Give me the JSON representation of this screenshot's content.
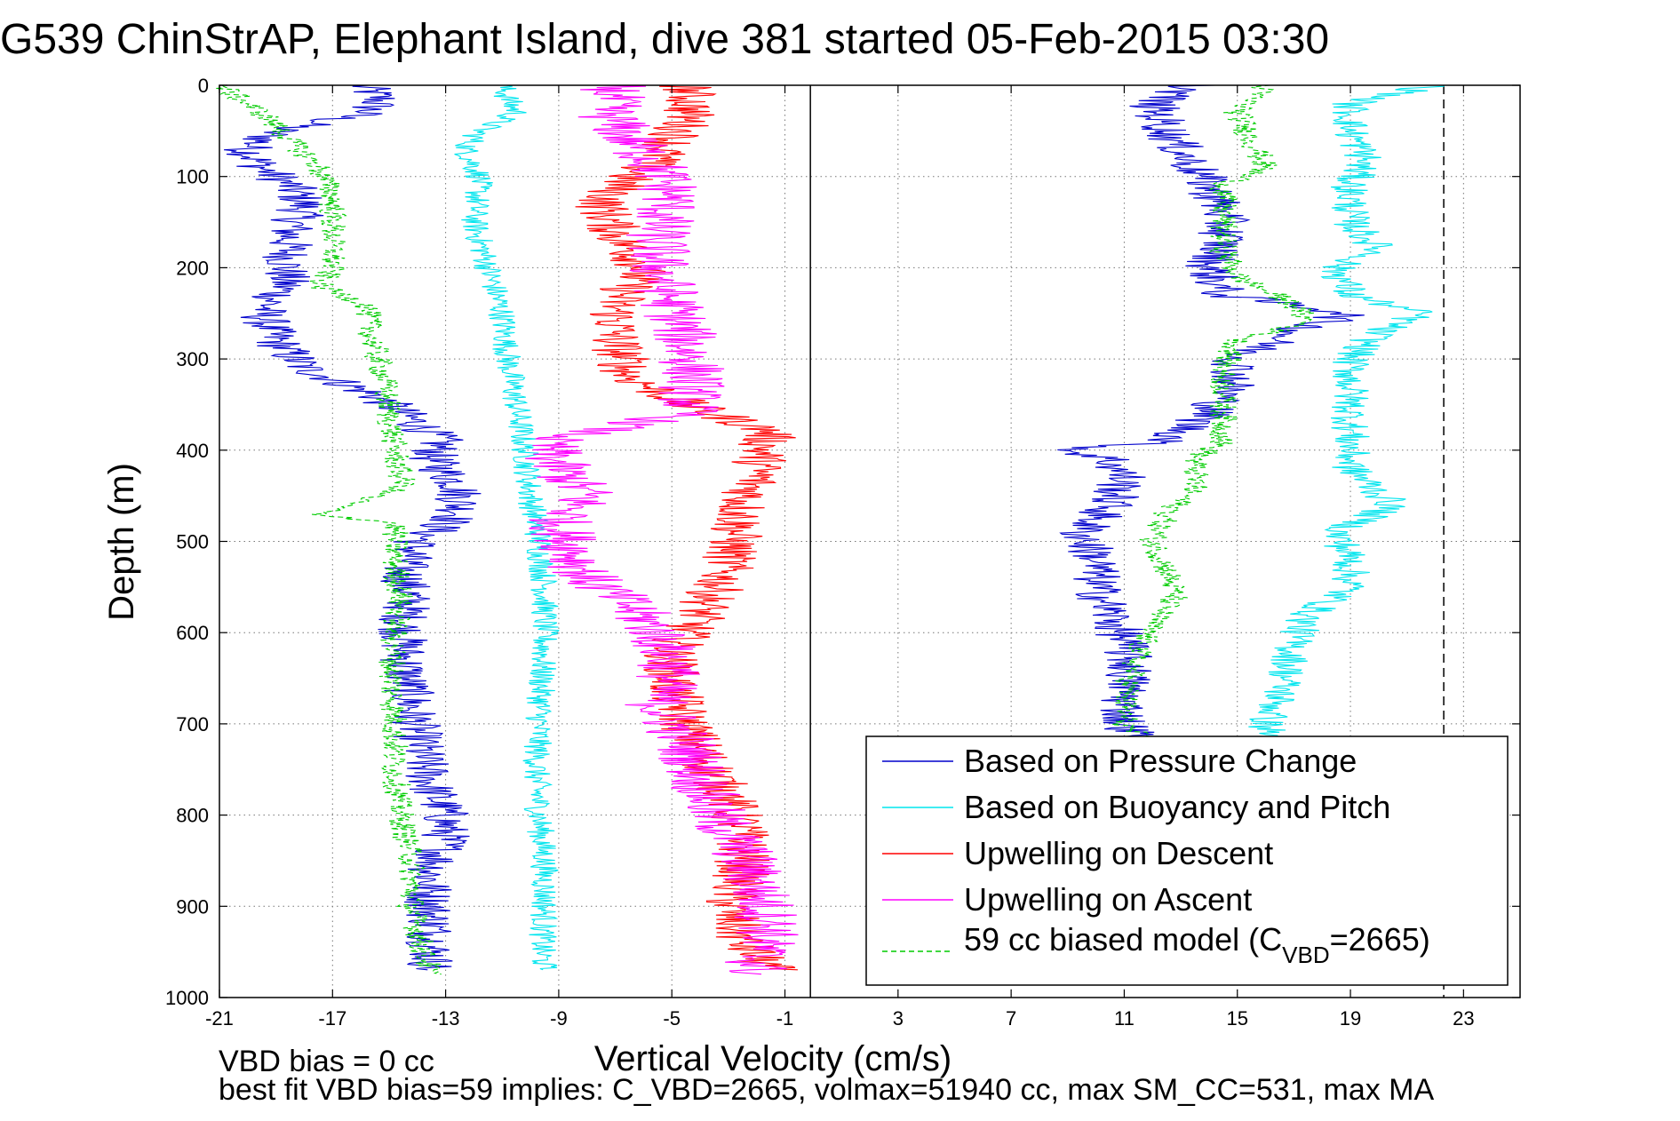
{
  "title": "G539 ChinStrAP, Elephant Island, dive 381 started 05-Feb-2015 03:30",
  "footnote": {
    "line1": "VBD bias = 0 cc",
    "line2": "best fit VBD bias=59 implies: C_VBD=2665, volmax=51940 cc, max SM_CC=531, max MA"
  },
  "legend": {
    "items": [
      {
        "label": "Based on Pressure Change",
        "color": "#0000cc",
        "dash": "solid"
      },
      {
        "label": "Based on Buoyancy and Pitch",
        "color": "#00e5ee",
        "dash": "solid"
      },
      {
        "label": "Upwelling on Descent",
        "color": "#ff0000",
        "dash": "solid"
      },
      {
        "label": "Upwelling on Ascent",
        "color": "#ff00ff",
        "dash": "solid"
      }
    ],
    "model": {
      "pre": "59 cc biased model (C",
      "sub": "VBD",
      "post": "=2665)",
      "color": "#00cc00",
      "dash": "dashed"
    }
  },
  "chart_data": {
    "type": "line",
    "title": "G539 ChinStrAP, Elephant Island, dive 381 started 05-Feb-2015 03:30",
    "xlabel": "Vertical Velocity (cm/s)",
    "ylabel": "Depth (m)",
    "xlim": [
      -21,
      25
    ],
    "ylim": [
      0,
      1000
    ],
    "y_reversed": true,
    "x_ticks": [
      "-21",
      "-17",
      "-13",
      "-9",
      "-5",
      "-1",
      "3",
      "7",
      "11",
      "15",
      "19",
      "23"
    ],
    "y_ticks": [
      "0",
      "100",
      "200",
      "300",
      "400",
      "500",
      "600",
      "700",
      "800",
      "900",
      "1000"
    ],
    "grid": true,
    "legend_position": "bottom-right",
    "reference_lines": [
      {
        "x": -0.1,
        "style": "solid",
        "color": "#000000"
      },
      {
        "x": 22.3,
        "style": "dashed",
        "color": "#000000"
      }
    ],
    "series": [
      {
        "name": "Based on Pressure Change",
        "color": "#0000cc",
        "dash": "solid",
        "noise": 0.9,
        "y": [
          0,
          15,
          30,
          50,
          70,
          90,
          110,
          130,
          160,
          190,
          220,
          250,
          280,
          310,
          340,
          370,
          390,
          410,
          440,
          470,
          500,
          530,
          560,
          590,
          620,
          650,
          680,
          710,
          740,
          770,
          800,
          830,
          860,
          890,
          920,
          950,
          970
        ],
        "x": [
          -16,
          -15.3,
          -15.8,
          -19,
          -20,
          -19.5,
          -18.5,
          -18,
          -18.5,
          -18.6,
          -18.7,
          -19.5,
          -19,
          -18,
          -15.5,
          -14,
          -13.2,
          -13.5,
          -12.5,
          -12.5,
          -14,
          -14.5,
          -14.3,
          -14.5,
          -14.5,
          -14.4,
          -14.2,
          -14,
          -13.8,
          -13.5,
          -13,
          -13,
          -13.5,
          -13.6,
          -13.5,
          -13.5,
          -13.5
        ]
      },
      {
        "name": "Based on Buoyancy and Pitch",
        "color": "#00e5ee",
        "dash": "solid",
        "noise": 0.5,
        "y": [
          0,
          15,
          30,
          50,
          70,
          100,
          150,
          200,
          250,
          300,
          350,
          400,
          450,
          480,
          500,
          550,
          600,
          650,
          700,
          750,
          800,
          850,
          900,
          950,
          970
        ],
        "x": [
          -11,
          -10.8,
          -10.5,
          -11.8,
          -12.3,
          -11.8,
          -12,
          -11.5,
          -11,
          -10.8,
          -10.5,
          -10.2,
          -10,
          -9.8,
          -9.7,
          -9.5,
          -9.5,
          -9.6,
          -9.7,
          -9.8,
          -9.7,
          -9.5,
          -9.5,
          -9.6,
          -9.5
        ]
      },
      {
        "name": "Upwelling on Descent",
        "color": "#ff0000",
        "dash": "solid",
        "noise": 1.0,
        "y": [
          0,
          20,
          40,
          60,
          80,
          100,
          130,
          160,
          200,
          240,
          280,
          320,
          350,
          380,
          400,
          430,
          460,
          500,
          540,
          580,
          620,
          660,
          700,
          740,
          780,
          820,
          860,
          900,
          940,
          970
        ],
        "x": [
          -4.5,
          -4.3,
          -4.5,
          -5,
          -5.5,
          -6.5,
          -7.5,
          -7,
          -6,
          -7,
          -7,
          -6.5,
          -4.5,
          -1.5,
          -1.8,
          -2,
          -2.5,
          -2.8,
          -3.2,
          -4,
          -5,
          -5,
          -4.5,
          -3.8,
          -3,
          -2.5,
          -2.5,
          -3,
          -2.5,
          -1.5
        ]
      },
      {
        "name": "Upwelling on Ascent",
        "color": "#ff00ff",
        "dash": "solid",
        "noise": 1.2,
        "y": [
          0,
          30,
          60,
          90,
          120,
          160,
          200,
          240,
          280,
          320,
          360,
          390,
          420,
          450,
          480,
          510,
          540,
          570,
          600,
          640,
          680,
          720,
          760,
          800,
          840,
          880,
          920,
          960,
          975
        ],
        "x": [
          -7,
          -7.3,
          -6.5,
          -5.5,
          -5,
          -5.5,
          -5.5,
          -5,
          -4.5,
          -4.2,
          -4.5,
          -9.5,
          -9,
          -8,
          -9,
          -8.5,
          -8,
          -6.5,
          -5.5,
          -5,
          -5.5,
          -4.5,
          -4,
          -3.5,
          -2.5,
          -2,
          -1.5,
          -2,
          -2
        ]
      },
      {
        "name": "59 cc biased model (C_VBD=2665)",
        "color": "#00cc00",
        "dash": "dashed",
        "noise": 0.5,
        "y": [
          0,
          30,
          60,
          90,
          120,
          160,
          200,
          220,
          240,
          280,
          320,
          360,
          400,
          440,
          470,
          480,
          520,
          560,
          600,
          650,
          700,
          750,
          800,
          850,
          900,
          950,
          975
        ],
        "x": [
          -21,
          -19.5,
          -18.5,
          -17.5,
          -17,
          -17,
          -17,
          -17.5,
          -15.8,
          -15.6,
          -15.2,
          -15,
          -14.8,
          -14.5,
          -17.5,
          -14.8,
          -14.8,
          -14.6,
          -14.8,
          -14.9,
          -14.8,
          -14.8,
          -14.6,
          -14.2,
          -14.2,
          -13.8,
          -13.5
        ]
      }
    ],
    "ascent_series": [
      {
        "name": "Based on Pressure Change",
        "color": "#0000cc",
        "dash": "solid",
        "noise": 0.9,
        "y": [
          0,
          20,
          50,
          80,
          110,
          140,
          170,
          200,
          230,
          250,
          270,
          300,
          330,
          360,
          390,
          400,
          410,
          430,
          460,
          490,
          520,
          550,
          580,
          610,
          640,
          670,
          700,
          715
        ],
        "x": [
          13.5,
          12,
          12.5,
          13.2,
          14,
          14.5,
          14.5,
          14,
          14.5,
          19,
          17,
          15,
          14.8,
          14,
          12.5,
          9,
          10.5,
          11,
          10.5,
          9.5,
          10,
          10,
          10.5,
          11,
          11.2,
          11,
          11,
          11.5
        ]
      },
      {
        "name": "Based on Buoyancy and Pitch",
        "color": "#00e5ee",
        "dash": "solid",
        "noise": 0.7,
        "y": [
          0,
          20,
          50,
          80,
          110,
          150,
          180,
          200,
          230,
          250,
          270,
          300,
          340,
          380,
          420,
          460,
          490,
          520,
          550,
          580,
          610,
          640,
          670,
          700,
          715
        ],
        "x": [
          22,
          19,
          19,
          19.5,
          19,
          19,
          20,
          18.5,
          19,
          21.5,
          20,
          19,
          19,
          19,
          19,
          20.5,
          18.5,
          19,
          19,
          17.5,
          17,
          16.8,
          16.5,
          16,
          16.2
        ]
      },
      {
        "name": "59 cc biased model (C_VBD=2665)",
        "color": "#00cc00",
        "dash": "dashed",
        "noise": 0.5,
        "y": [
          0,
          30,
          60,
          90,
          110,
          140,
          180,
          210,
          240,
          260,
          280,
          310,
          350,
          390,
          410,
          440,
          470,
          500,
          530,
          560,
          590,
          620,
          650,
          680,
          700,
          715
        ],
        "x": [
          16,
          15,
          15.5,
          16,
          14.5,
          14.5,
          14.5,
          15,
          17,
          17.5,
          15,
          14.5,
          14.5,
          14.5,
          13.5,
          13.5,
          12.5,
          12,
          12.5,
          12.8,
          12,
          11.5,
          11.2,
          11,
          11,
          11.5
        ]
      }
    ]
  }
}
